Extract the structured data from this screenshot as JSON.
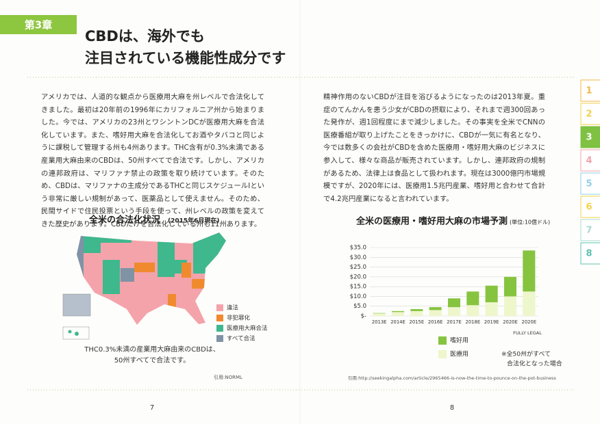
{
  "header": {
    "chapter": "第3章",
    "title_lines": [
      "CBDは、海外でも",
      "注目されている機能性成分です"
    ]
  },
  "left_page": {
    "paragraph": "アメリカでは、人道的な観点から医療用大麻を州レベルで合法化してきました。最初は20年前の1996年にカリフォルニア州から始まりました。今では、アメリカの23州とワシントンDCが医療用大麻を合法化しています。また、嗜好用大麻を合法化してお酒やタバコと同じように課税して管理する州も4州あります。THC含有が0.3%未満である産業用大麻由来のCBDは、50州すべてで合法です。しかし、アメリカの連邦政府は、マリファナ禁止の政策を取り続けています。そのため、CBDは、マリファナの主成分であるTHCと同じスケジュールⅠという非常に厳しい規制があって、医薬品として使えません。そのため、民間サイドで住民投票という手段を使って、州レベルの政策を変えてきた歴史があります。CBDだけを合法化している州も11州あります。",
    "map_title": "全米の合法化状況",
    "map_subtitle": "(2015年6月現在)",
    "map_legend": [
      {
        "label": "違法",
        "color": "#f4a3aa"
      },
      {
        "label": "非犯罪化",
        "color": "#f08a2e"
      },
      {
        "label": "医療用大麻合法",
        "color": "#3fb88e"
      },
      {
        "label": "すべて合法",
        "color": "#7f93a6"
      }
    ],
    "caption": [
      "THC0.3%未満の産業用大麻由来のCBDは、",
      "50州すべてで合法です。"
    ],
    "citation": "引用:NORML",
    "page_number": "7"
  },
  "right_page": {
    "paragraph": "精神作用のないCBDが注目を浴びるようになったのは2013年夏。重症のてんかんを患う少女がCBDの摂取により、それまで週300回あった発作が、週1回程度にまで減少しました。その事実を全米でCNNの医療番組が取り上げたことをきっかけに、CBDが一気に有名となり、今では数多くの会社がCBDを含めた医療用・嗜好用大麻のビジネスに参入して、様々な商品が販売されています。しかし、連邦政府の規制があるため、法律上は食品として扱われます。現在は3000億円市場規模ですが、2020年には、医療用1.5兆円産業、嗜好用と合わせて合計で4.2兆円産業になると言われています。",
    "citation": "引用:http://seekingalpha.com/article/2965466-is-now-the-time-to-pounce-on-the-pot-business",
    "page_number": "8"
  },
  "tabs": [
    {
      "label": "1",
      "color": "#f3b54a"
    },
    {
      "label": "2",
      "color": "#f2d24a"
    },
    {
      "label": "3",
      "color": "#7fc142"
    },
    {
      "label": "4",
      "color": "#f4a3aa"
    },
    {
      "label": "5",
      "color": "#8fd0e8"
    },
    {
      "label": "6",
      "color": "#f2d24a"
    },
    {
      "label": "7",
      "color": "#a9d9cf"
    },
    {
      "label": "8",
      "color": "#5cc3b0"
    }
  ],
  "chart_data": {
    "type": "bar",
    "stacked": true,
    "title": "全米の医療用・嗜好用大麻の市場予測",
    "unit": "(単位:10億ドル)",
    "categories": [
      "2013E",
      "2014E",
      "2015E",
      "2016E",
      "2017E",
      "2018E",
      "2019E",
      "2020E",
      "2020E"
    ],
    "series": [
      {
        "name": "嗜好用",
        "color": "#86c440",
        "values": [
          0.2,
          0.5,
          1.0,
          1.5,
          4.5,
          7,
          8.5,
          10,
          21
        ]
      },
      {
        "name": "医療用",
        "color": "#eef6cc",
        "values": [
          1.3,
          2.0,
          2.5,
          3.0,
          4.5,
          5.5,
          7,
          10,
          12.5
        ]
      }
    ],
    "ylim": [
      0,
      35
    ],
    "yticks": [
      {
        "value": 0,
        "label": "$-"
      },
      {
        "value": 5,
        "label": "$5.0"
      },
      {
        "value": 10,
        "label": "$10.0"
      },
      {
        "value": 15,
        "label": "$15.0"
      },
      {
        "value": 20,
        "label": "$20.0"
      },
      {
        "value": 25,
        "label": "$25.0"
      },
      {
        "value": 30,
        "label": "$30.0"
      },
      {
        "value": 35,
        "label": "$35.0"
      }
    ],
    "grid": true,
    "annotation": "FULLY LEGAL",
    "note": [
      "※全50州がすべて",
      "合法化となった場合"
    ]
  }
}
